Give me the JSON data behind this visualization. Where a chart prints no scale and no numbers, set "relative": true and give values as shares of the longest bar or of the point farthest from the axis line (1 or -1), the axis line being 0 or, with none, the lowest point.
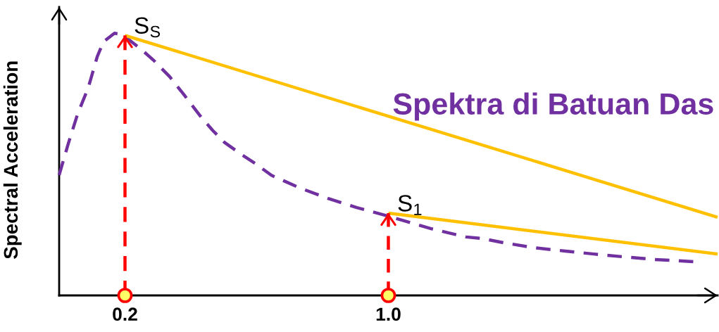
{
  "chart_data": {
    "type": "line",
    "relative": true,
    "ylabel": "Spectral Acceleration",
    "tick_labels": "x",
    "xlim": [
      0,
      2.0
    ],
    "xticks": [
      0.2,
      {
        "value": 1,
        "label": "1.0"
      }
    ],
    "series": [
      {
        "name": "Spektra di Batuan Das",
        "color": "#7030a0",
        "line_style": "dashed",
        "x": [
          0.0,
          0.027,
          0.056,
          0.088,
          0.116,
          0.135,
          0.168,
          0.192,
          0.25,
          0.286,
          0.336,
          0.38,
          0.429,
          0.466,
          0.502,
          0.552,
          0.595,
          0.645,
          0.731,
          0.817,
          0.904,
          0.998,
          1.055,
          1.128,
          1.236,
          1.285,
          1.35,
          1.443,
          1.538,
          1.624,
          1.717,
          1.809,
          1.926
        ],
        "values": [
          0.459,
          0.576,
          0.692,
          0.791,
          0.912,
          0.968,
          1.0,
          0.995,
          0.938,
          0.898,
          0.834,
          0.764,
          0.684,
          0.63,
          0.584,
          0.539,
          0.504,
          0.458,
          0.41,
          0.37,
          0.335,
          0.303,
          0.282,
          0.255,
          0.223,
          0.217,
          0.201,
          0.182,
          0.169,
          0.158,
          0.147,
          0.137,
          0.129
        ]
      },
      {
        "color": "#ffc000",
        "line_style": "solid",
        "x": [
          0.2,
          2.0
        ],
        "values": [
          0.992,
          0.298
        ]
      },
      {
        "color": "#ffc000",
        "line_style": "solid",
        "x": [
          1,
          2.0
        ],
        "values": [
          0.314,
          0.158
        ]
      },
      {
        "color": "#ff0000",
        "line_style": "dashed",
        "x": [
          0.2,
          0.2
        ],
        "values": [
          0,
          0.992
        ]
      },
      {
        "color": "#ff0000",
        "line_style": "dashed",
        "x": [
          1,
          1
        ],
        "values": [
          0,
          0.314
        ]
      },
      {
        "type": "scatter",
        "color": "#ff0000",
        "marker": "circle",
        "x": [
          0.2,
          1
        ],
        "values": [
          0,
          0
        ]
      }
    ],
    "annotations": [
      {
        "text": "S$_{S}$",
        "x": 0.2,
        "y": 0.992
      },
      {
        "text": "S$_{1}$",
        "x": 1,
        "y": 0.314
      }
    ]
  }
}
